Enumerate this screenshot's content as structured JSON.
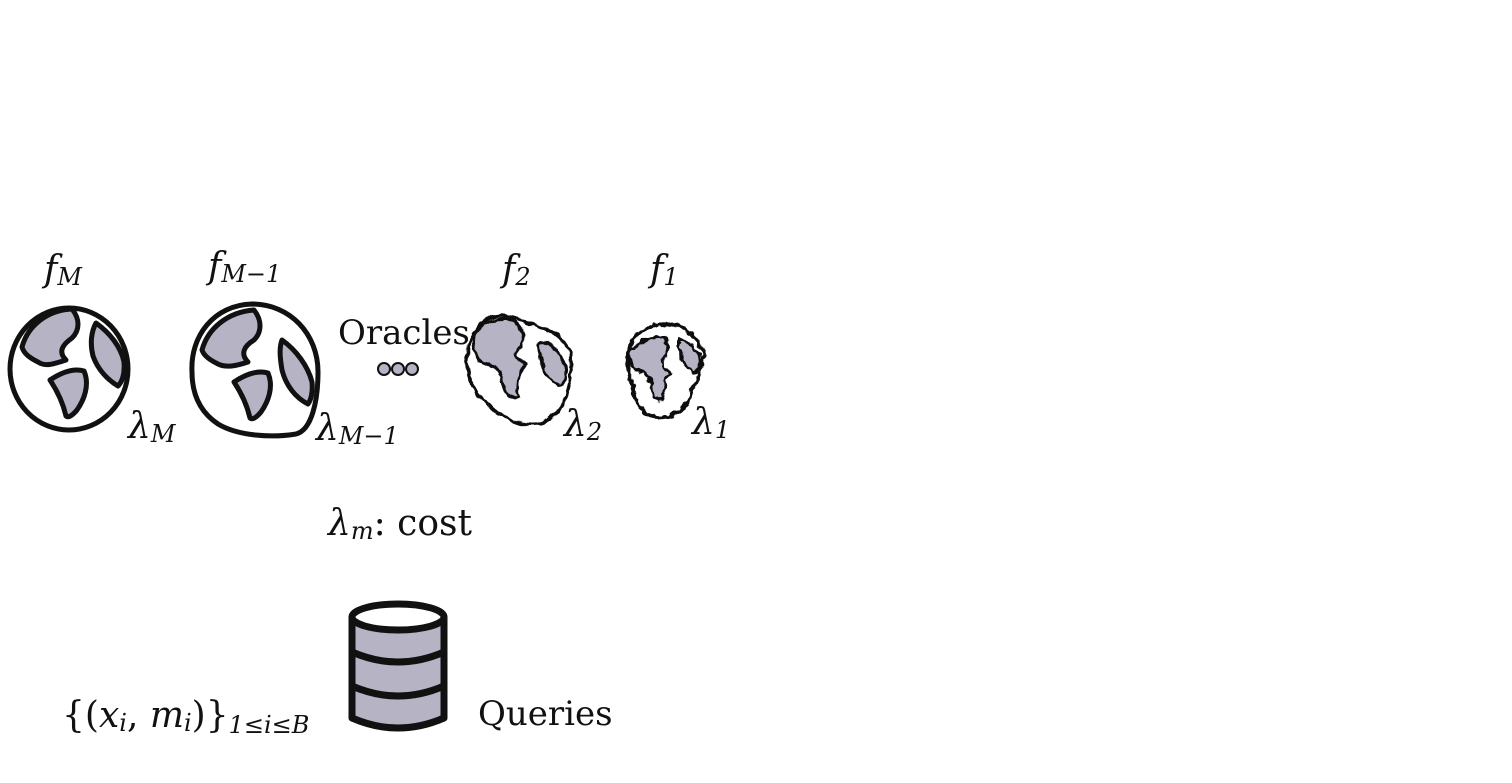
{
  "colors": {
    "land": "#b5b3c4",
    "outline": "#111111",
    "background": "#ffffff"
  },
  "oracles": {
    "label": "Oracles",
    "items": [
      {
        "func_base": "f",
        "func_sub": "M",
        "cost_base": "λ",
        "cost_sub": "M",
        "icon": "globe-icon"
      },
      {
        "func_base": "f",
        "func_sub": "M−1",
        "cost_base": "λ",
        "cost_sub": "M−1",
        "icon": "globe-icon"
      },
      {
        "func_base": "f",
        "func_sub": "2",
        "cost_base": "λ",
        "cost_sub": "2",
        "icon": "rough-globe-icon"
      },
      {
        "func_base": "f",
        "func_sub": "1",
        "cost_base": "λ",
        "cost_sub": "1",
        "icon": "rough-globe-icon"
      }
    ],
    "ellipsis_icon": "ellipsis-icon"
  },
  "cost_legend": {
    "symbol_base": "λ",
    "symbol_sub": "m",
    "text": ": cost"
  },
  "queries": {
    "set_open": "{(",
    "x_base": "x",
    "x_sub": "i",
    "comma": ", ",
    "m_base": "m",
    "m_sub": "i",
    "set_close": ")}",
    "range_sub": "1≤i≤B",
    "label": "Queries",
    "icon": "database-icon"
  }
}
